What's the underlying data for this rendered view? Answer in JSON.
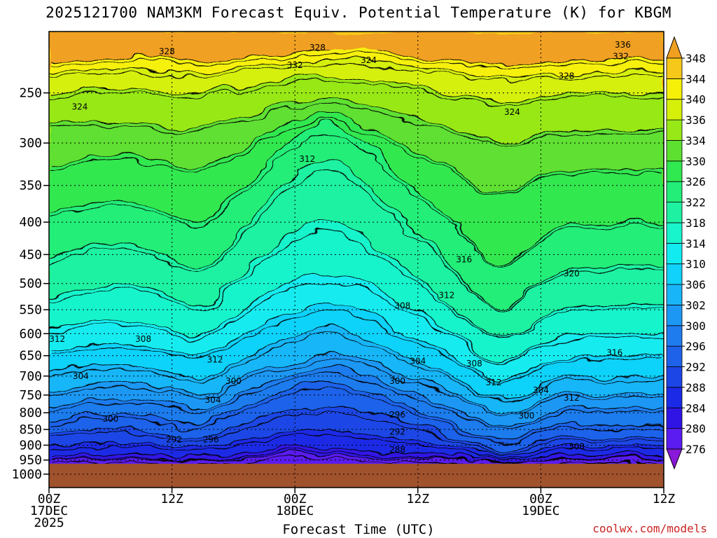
{
  "title": "2025121700 NAM3KM Forecast Equiv. Potential Temperature (K) for KBGM",
  "credit": "coolwx.com/models",
  "chart_data": {
    "type": "heatmap",
    "title": "2025121700 NAM3KM Forecast Equiv. Potential Temperature (K) for KBGM",
    "xlabel": "Forecast Time (UTC)",
    "ylabel": "",
    "x_range_hours": [
      0,
      60
    ],
    "y_range": [
      1050,
      200
    ],
    "y_log_scale": true,
    "grid": true,
    "x_ticks": [
      {
        "h": 0,
        "lines": [
          "00Z",
          "17DEC",
          "2025"
        ]
      },
      {
        "h": 12,
        "lines": [
          "12Z"
        ]
      },
      {
        "h": 24,
        "lines": [
          "00Z",
          "18DEC"
        ]
      },
      {
        "h": 36,
        "lines": [
          "12Z"
        ]
      },
      {
        "h": 48,
        "lines": [
          "00Z",
          "19DEC"
        ]
      },
      {
        "h": 60,
        "lines": [
          "12Z"
        ]
      }
    ],
    "y_ticks": [
      250,
      300,
      350,
      400,
      450,
      500,
      550,
      600,
      650,
      700,
      750,
      800,
      850,
      900,
      950,
      1000
    ],
    "colorbar": {
      "levels": [
        276,
        280,
        284,
        288,
        292,
        296,
        300,
        302,
        306,
        310,
        314,
        318,
        322,
        326,
        330,
        334,
        336,
        340,
        344,
        348
      ],
      "colors": [
        "#8a18d8",
        "#5a1cf0",
        "#3014e6",
        "#1a2ae6",
        "#1c46e6",
        "#1e62ea",
        "#1e7cee",
        "#1c98f4",
        "#18b6f8",
        "#10d2fa",
        "#12ecf0",
        "#18f4cc",
        "#1ef2a2",
        "#22ee78",
        "#30e850",
        "#5ee030",
        "#98e818",
        "#d6f00a",
        "#f6f008",
        "#f6c81a",
        "#f0a020"
      ]
    },
    "contour_labels": [
      {
        "h": 11.5,
        "p": 215,
        "label": "328"
      },
      {
        "h": 26.2,
        "p": 212,
        "label": "328"
      },
      {
        "h": 56.0,
        "p": 210,
        "label": "336"
      },
      {
        "h": 55.8,
        "p": 219,
        "label": "332"
      },
      {
        "h": 24.0,
        "p": 226,
        "label": "332"
      },
      {
        "h": 31.2,
        "p": 222,
        "label": "324"
      },
      {
        "h": 50.5,
        "p": 235,
        "label": "328"
      },
      {
        "h": 3.0,
        "p": 263,
        "label": "324"
      },
      {
        "h": 45.2,
        "p": 268,
        "label": "324"
      },
      {
        "h": 25.2,
        "p": 318,
        "label": "312"
      },
      {
        "h": 40.5,
        "p": 458,
        "label": "316"
      },
      {
        "h": 51.0,
        "p": 482,
        "label": "320"
      },
      {
        "h": 38.8,
        "p": 522,
        "label": "312"
      },
      {
        "h": 34.5,
        "p": 542,
        "label": "308"
      },
      {
        "h": 0.8,
        "p": 612,
        "label": "312"
      },
      {
        "h": 9.2,
        "p": 612,
        "label": "308"
      },
      {
        "h": 16.2,
        "p": 660,
        "label": "312"
      },
      {
        "h": 36.0,
        "p": 663,
        "label": "304"
      },
      {
        "h": 41.5,
        "p": 669,
        "label": "308"
      },
      {
        "h": 55.2,
        "p": 643,
        "label": "316"
      },
      {
        "h": 3.1,
        "p": 700,
        "label": "304"
      },
      {
        "h": 18.0,
        "p": 713,
        "label": "300"
      },
      {
        "h": 34.0,
        "p": 713,
        "label": "300"
      },
      {
        "h": 43.4,
        "p": 717,
        "label": "312"
      },
      {
        "h": 48.0,
        "p": 737,
        "label": "304"
      },
      {
        "h": 16.0,
        "p": 764,
        "label": "304"
      },
      {
        "h": 51.0,
        "p": 758,
        "label": "312"
      },
      {
        "h": 6.0,
        "p": 818,
        "label": "300"
      },
      {
        "h": 34.0,
        "p": 806,
        "label": "296"
      },
      {
        "h": 46.6,
        "p": 809,
        "label": "300"
      },
      {
        "h": 34.0,
        "p": 857,
        "label": "292"
      },
      {
        "h": 12.2,
        "p": 882,
        "label": "292"
      },
      {
        "h": 15.8,
        "p": 882,
        "label": "296"
      },
      {
        "h": 34.0,
        "p": 915,
        "label": "288"
      },
      {
        "h": 51.5,
        "p": 905,
        "label": "308"
      }
    ]
  }
}
